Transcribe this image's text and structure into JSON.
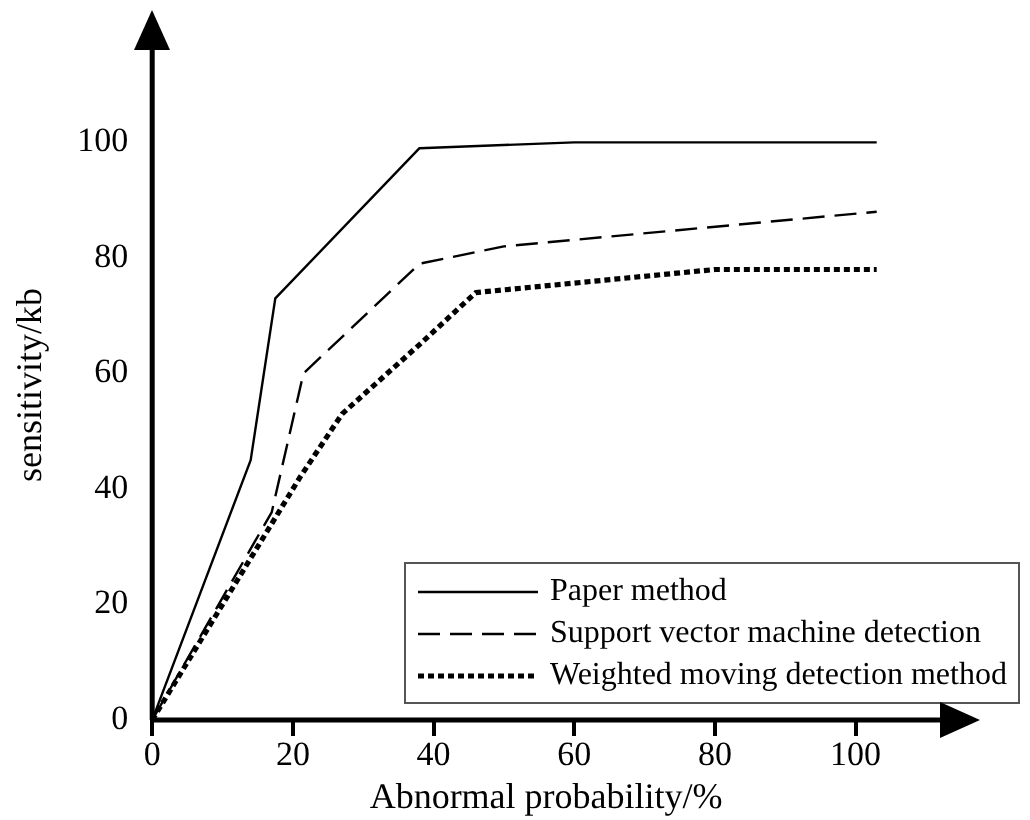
{
  "chart_data": {
    "type": "line",
    "xlabel": "Abnormal probability/%",
    "ylabel": "sensitivity/kb",
    "xlim": [
      0,
      112
    ],
    "xticks": [
      0,
      20,
      40,
      60,
      80,
      100
    ],
    "ylim": [
      0,
      116
    ],
    "yticks": [
      0,
      20,
      40,
      60,
      80,
      100
    ],
    "grid": false,
    "legend": "bottom right",
    "marker": "none",
    "series": [
      {
        "name": "Paper method",
        "color": "#000000",
        "line_style": "solid",
        "x": [
          0,
          14,
          17.5,
          38,
          60,
          103
        ],
        "values": [
          0,
          45,
          73,
          99,
          100,
          100
        ]
      },
      {
        "name": "Support vector machine detection",
        "color": "#000000",
        "line_style": "dashed",
        "x": [
          0,
          17,
          21.5,
          38,
          50,
          103
        ],
        "values": [
          0,
          36,
          60,
          79,
          82,
          88
        ]
      },
      {
        "name": "Weighted moving detection method",
        "color": "#000000",
        "line_style": "dotted",
        "x": [
          0,
          21,
          27,
          38,
          46,
          80,
          103
        ],
        "values": [
          0,
          42,
          53,
          65,
          74,
          78,
          78
        ]
      }
    ]
  }
}
